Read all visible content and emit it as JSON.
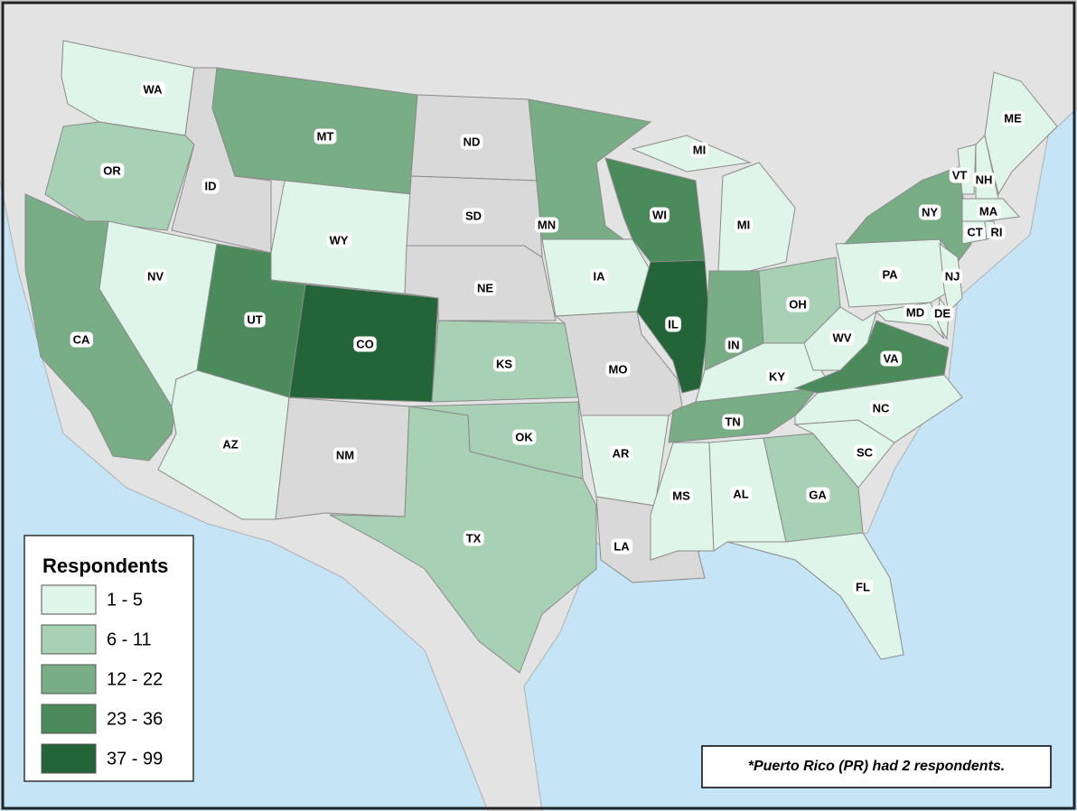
{
  "legend": {
    "title": "Respondents",
    "items": [
      {
        "label": "1 - 5",
        "color": "#e0f5ea"
      },
      {
        "label": "6 - 11",
        "color": "#a8d0b4"
      },
      {
        "label": "12 - 22",
        "color": "#78ad85"
      },
      {
        "label": "23 - 36",
        "color": "#4a8a5b"
      },
      {
        "label": "37 - 99",
        "color": "#236438"
      }
    ]
  },
  "note": "*Puerto Rico (PR) had 2 respondents.",
  "no_data_color": "#d9d9d9",
  "states": [
    {
      "label": "WA",
      "color": "#e0f5ea"
    },
    {
      "label": "OR",
      "color": "#a8d0b4"
    },
    {
      "label": "CA",
      "color": "#78ad85"
    },
    {
      "label": "ID",
      "color": "#d9d9d9"
    },
    {
      "label": "NV",
      "color": "#e0f5ea"
    },
    {
      "label": "MT",
      "color": "#78ad85"
    },
    {
      "label": "WY",
      "color": "#e0f5ea"
    },
    {
      "label": "UT",
      "color": "#4a8a5b"
    },
    {
      "label": "CO",
      "color": "#236438"
    },
    {
      "label": "AZ",
      "color": "#e0f5ea"
    },
    {
      "label": "NM",
      "color": "#d9d9d9"
    },
    {
      "label": "ND",
      "color": "#d9d9d9"
    },
    {
      "label": "SD",
      "color": "#d9d9d9"
    },
    {
      "label": "NE",
      "color": "#d9d9d9"
    },
    {
      "label": "KS",
      "color": "#a8d0b4"
    },
    {
      "label": "OK",
      "color": "#a8d0b4"
    },
    {
      "label": "TX",
      "color": "#a8d0b4"
    },
    {
      "label": "MN",
      "color": "#78ad85"
    },
    {
      "label": "IA",
      "color": "#e0f5ea"
    },
    {
      "label": "MO",
      "color": "#d9d9d9"
    },
    {
      "label": "AR",
      "color": "#e0f5ea"
    },
    {
      "label": "LA",
      "color": "#d9d9d9"
    },
    {
      "label": "WI",
      "color": "#4a8a5b"
    },
    {
      "label": "IL",
      "color": "#236438"
    },
    {
      "label": "MI",
      "color": "#e0f5ea"
    },
    {
      "label": "MI",
      "color": "#e0f5ea"
    },
    {
      "label": "IN",
      "color": "#78ad85"
    },
    {
      "label": "OH",
      "color": "#a8d0b4"
    },
    {
      "label": "KY",
      "color": "#e0f5ea"
    },
    {
      "label": "TN",
      "color": "#78ad85"
    },
    {
      "label": "MS",
      "color": "#e0f5ea"
    },
    {
      "label": "AL",
      "color": "#e0f5ea"
    },
    {
      "label": "GA",
      "color": "#a8d0b4"
    },
    {
      "label": "FL",
      "color": "#e0f5ea"
    },
    {
      "label": "SC",
      "color": "#e0f5ea"
    },
    {
      "label": "NC",
      "color": "#e0f5ea"
    },
    {
      "label": "VA",
      "color": "#4a8a5b"
    },
    {
      "label": "WV",
      "color": "#e0f5ea"
    },
    {
      "label": "PA",
      "color": "#e0f5ea"
    },
    {
      "label": "NY",
      "color": "#78ad85"
    },
    {
      "label": "NJ",
      "color": "#e0f5ea"
    },
    {
      "label": "DE",
      "color": "#e0f5ea"
    },
    {
      "label": "MD",
      "color": "#e0f5ea"
    },
    {
      "label": "VT",
      "color": "#e0f5ea"
    },
    {
      "label": "NH",
      "color": "#e0f5ea"
    },
    {
      "label": "ME",
      "color": "#e0f5ea"
    },
    {
      "label": "MA",
      "color": "#e0f5ea"
    },
    {
      "label": "CT",
      "color": "#e0f5ea"
    },
    {
      "label": "RI",
      "color": "#e0f5ea"
    }
  ]
}
